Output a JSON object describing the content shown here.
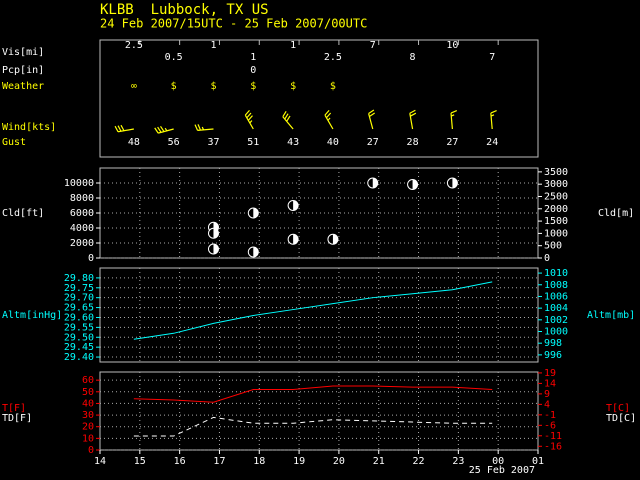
{
  "header": {
    "title": "KLBB  Lubbock, TX US",
    "subtitle": "24 Feb 2007/15UTC - 25 Feb 2007/00UTC"
  },
  "chart_data": [
    {
      "type": "station",
      "x": [
        14.85,
        15.85,
        16.85,
        17.85,
        18.85,
        19.85,
        20.85,
        21.85,
        22.85,
        23.85
      ],
      "rows": [
        {
          "name": "Vis[mi]",
          "values": [
            2.5,
            0.5,
            1,
            1,
            1,
            2.5,
            7,
            8,
            10,
            7
          ]
        },
        {
          "name": "Pcp[in]",
          "values": [
            null,
            null,
            null,
            0,
            null,
            null,
            null,
            null,
            null,
            null
          ]
        },
        {
          "name": "Weather",
          "values": [
            "∞",
            "$",
            "$",
            "$",
            "$",
            "$",
            null,
            null,
            null,
            null
          ]
        },
        {
          "name": "Wind[kts]",
          "speed": [
            30,
            35,
            25,
            35,
            30,
            25,
            20,
            20,
            15,
            15
          ],
          "direction": [
            260,
            255,
            265,
            330,
            320,
            330,
            345,
            350,
            355,
            355
          ]
        },
        {
          "name": "Gust",
          "values": [
            48,
            56,
            37,
            51,
            43,
            40,
            27,
            28,
            27,
            24
          ]
        }
      ]
    },
    {
      "type": "scatter",
      "ylabel": "Cld[ft]",
      "y2label": "Cld[m]",
      "x": [
        16.85,
        16.85,
        16.85,
        17.85,
        17.85,
        18.85,
        18.85,
        19.85,
        20.85,
        21.85,
        22.85
      ],
      "values": [
        4100,
        3300,
        1200,
        6000,
        800,
        7000,
        2500,
        2500,
        10000,
        9800,
        10000
      ],
      "ylim": [
        0,
        12000
      ],
      "yticks": [
        0,
        2000,
        4000,
        6000,
        8000,
        10000
      ],
      "y2lim": [
        0,
        3657.6
      ],
      "y2ticks": [
        0,
        500,
        1000,
        1500,
        2000,
        2500,
        3000,
        3500
      ],
      "grid": true
    },
    {
      "type": "line",
      "ylabel": "Altm[inHg]",
      "y2label": "Altm[mb]",
      "color": "#00ffff",
      "x": [
        14.85,
        15.85,
        16.85,
        17.85,
        18.85,
        19.85,
        20.85,
        21.85,
        22.85,
        23.85
      ],
      "values": [
        29.49,
        29.52,
        29.57,
        29.61,
        29.64,
        29.67,
        29.7,
        29.72,
        29.74,
        29.78
      ],
      "ylim": [
        29.375,
        29.85
      ],
      "yticks": [
        {
          "value": 29.4,
          "label": "29.40"
        },
        29.45,
        {
          "value": 29.5,
          "label": "29.50"
        },
        29.55,
        {
          "value": 29.6,
          "label": "29.60"
        },
        29.65,
        {
          "value": 29.7,
          "label": "29.70"
        },
        29.75,
        {
          "value": 29.8,
          "label": "29.80"
        }
      ],
      "y2lim": [
        994.78,
        1010.87
      ],
      "y2ticks": [
        996,
        998,
        1000,
        1002,
        1004,
        1006,
        1008,
        1010
      ],
      "grid": true
    },
    {
      "type": "line",
      "x": [
        14.85,
        15.85,
        16.85,
        17.85,
        18.85,
        19.85,
        20.85,
        21.85,
        22.85,
        23.85
      ],
      "series": [
        {
          "name": "T[F]",
          "color": "#ff0000",
          "dashed": false,
          "values": [
            44,
            43,
            41,
            52,
            52,
            55,
            55,
            54,
            54,
            52
          ]
        },
        {
          "name": "TD[F]",
          "color": "#ffffff",
          "dashed": true,
          "values": [
            12,
            12,
            28,
            23,
            23,
            26,
            25,
            24,
            23,
            23
          ]
        }
      ],
      "y2labels": [
        "T[C]",
        "TD[C]"
      ],
      "ylim": [
        0,
        67
      ],
      "yticks": [
        0,
        10,
        20,
        30,
        40,
        50,
        60
      ],
      "y2lim": [
        -17.78,
        19.44
      ],
      "y2ticks": [
        -16,
        -11,
        -6,
        -1,
        4,
        9,
        14,
        19
      ],
      "xlim": [
        14,
        25
      ],
      "xticks": [
        14,
        15,
        16,
        17,
        18,
        19,
        20,
        21,
        22,
        23,
        {
          "value": 24,
          "label": "00"
        },
        {
          "value": 25,
          "label": "01"
        }
      ],
      "date_label": "25 Feb 2007",
      "grid": true
    }
  ]
}
